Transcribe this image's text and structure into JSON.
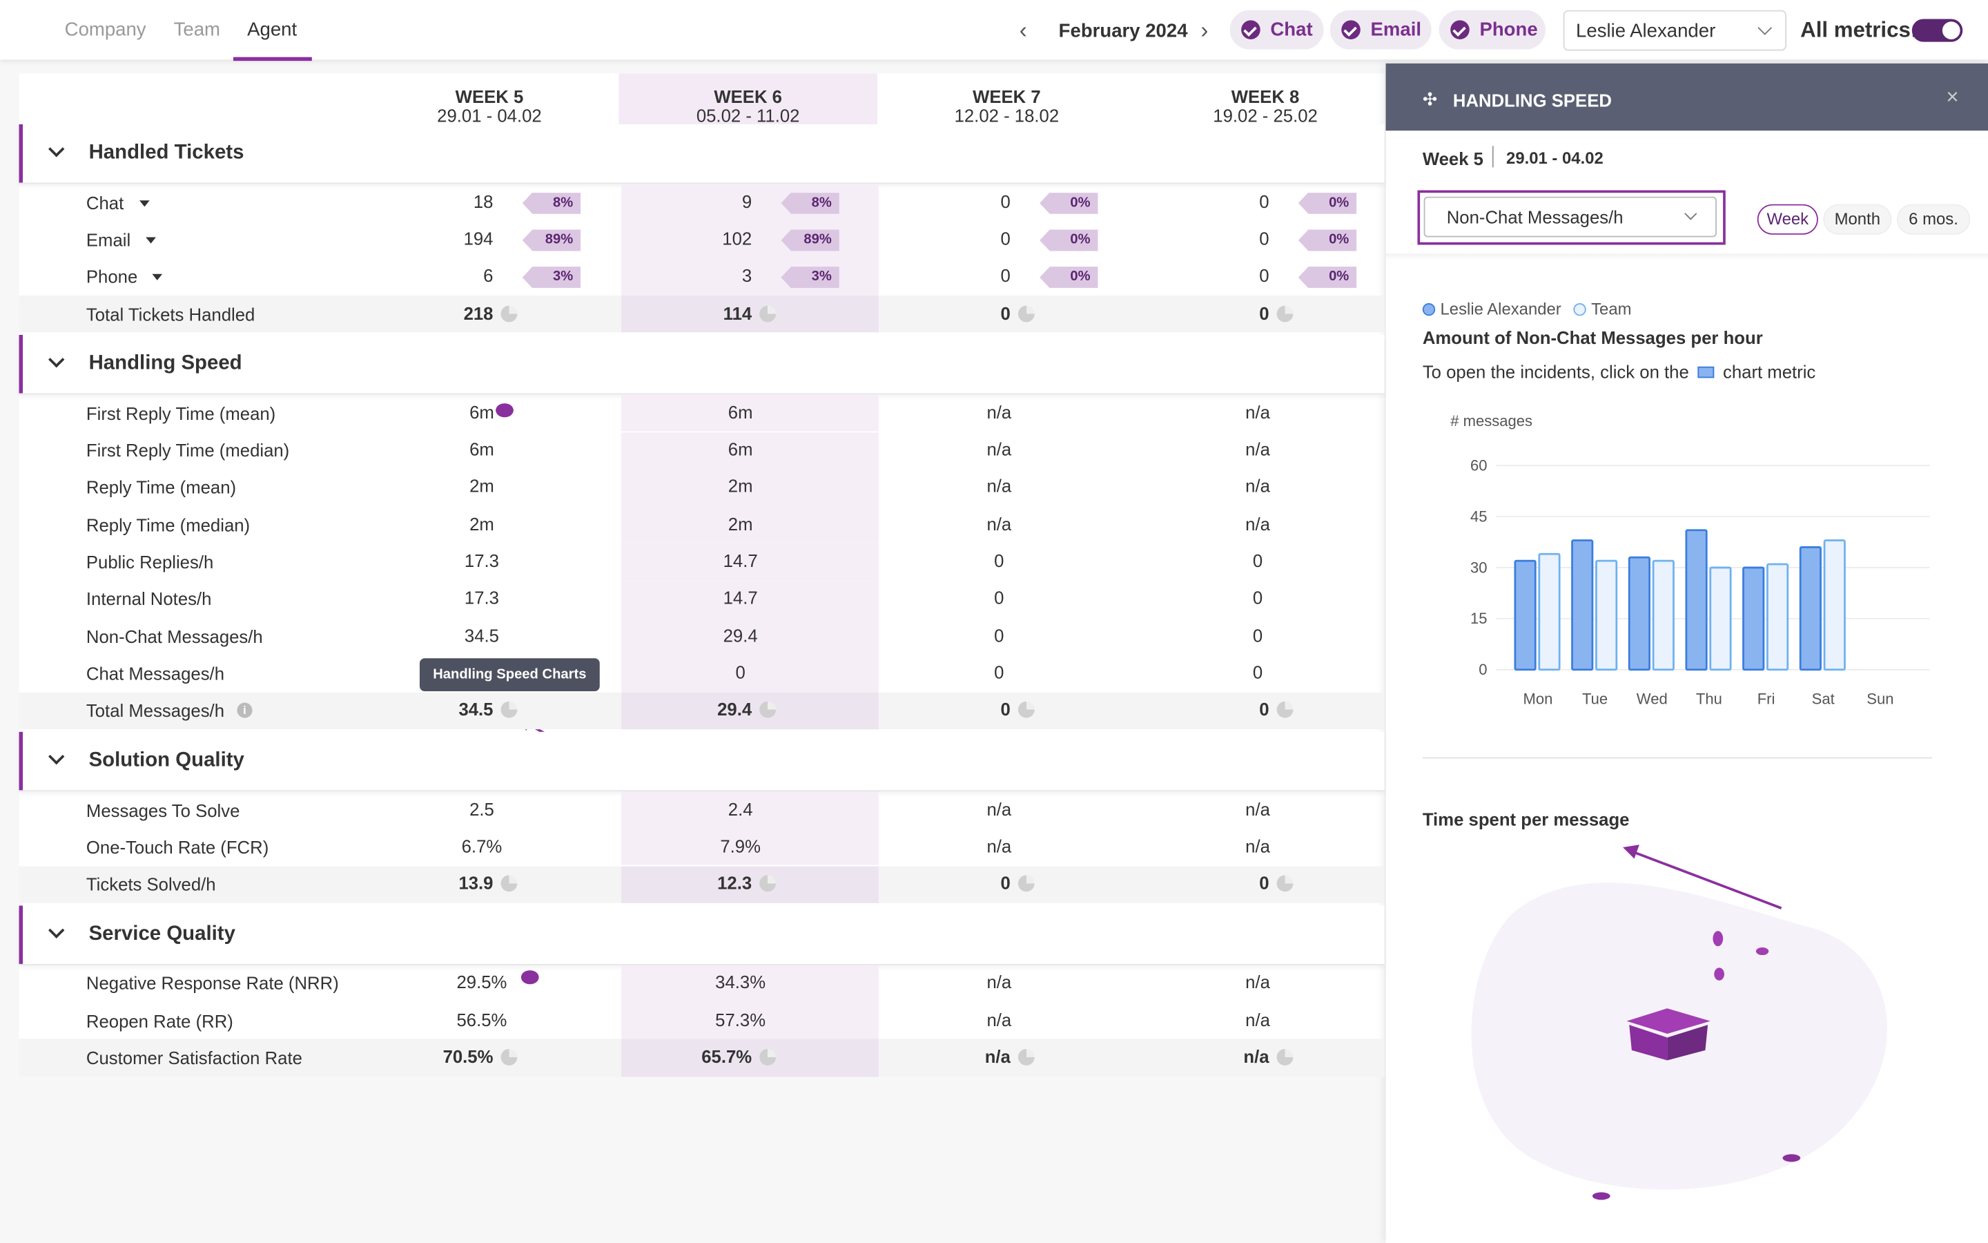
{
  "nav": {
    "tabs": [
      "Company",
      "Team",
      "Agent"
    ],
    "active_tab": "Agent",
    "month": "February 2024",
    "channels": [
      "Chat",
      "Email",
      "Phone"
    ],
    "agent": "Leslie Alexander",
    "all_metrics": "All metrics:"
  },
  "table": {
    "weeks": [
      {
        "name": "WEEK 5",
        "range": "29.01 - 04.02"
      },
      {
        "name": "WEEK 6",
        "range": "05.02 - 11.02"
      },
      {
        "name": "WEEK 7",
        "range": "12.02 - 18.02"
      },
      {
        "name": "WEEK 8",
        "range": "19.02 - 25.02"
      }
    ],
    "sections": [
      {
        "title": "Handled Tickets",
        "rows": [
          {
            "label": "Chat",
            "kind": "share",
            "dropdown": true,
            "cells": [
              "18",
              "9",
              "0",
              "0"
            ],
            "shares": [
              "8%",
              "8%",
              "0%",
              "0%"
            ]
          },
          {
            "label": "Email",
            "kind": "share",
            "dropdown": true,
            "cells": [
              "194",
              "102",
              "0",
              "0"
            ],
            "shares": [
              "89%",
              "89%",
              "0%",
              "0%"
            ]
          },
          {
            "label": "Phone",
            "kind": "share",
            "dropdown": true,
            "cells": [
              "6",
              "3",
              "0",
              "0"
            ],
            "shares": [
              "3%",
              "3%",
              "0%",
              "0%"
            ]
          },
          {
            "label": "Total Tickets Handled",
            "kind": "total",
            "cells": [
              "218",
              "114",
              "0",
              "0"
            ]
          }
        ]
      },
      {
        "title": "Handling Speed",
        "rows": [
          {
            "label": "First Reply Time (mean)",
            "kind": "plain",
            "cells": [
              "6m",
              "6m",
              "n/a",
              "n/a"
            ]
          },
          {
            "label": "First Reply Time (median)",
            "kind": "plain",
            "cells": [
              "6m",
              "6m",
              "n/a",
              "n/a"
            ]
          },
          {
            "label": "Reply Time (mean)",
            "kind": "plain",
            "cells": [
              "2m",
              "2m",
              "n/a",
              "n/a"
            ]
          },
          {
            "label": "Reply Time (median)",
            "kind": "plain",
            "cells": [
              "2m",
              "2m",
              "n/a",
              "n/a"
            ]
          },
          {
            "label": "Public Replies/h",
            "kind": "plain",
            "cells": [
              "17.3",
              "14.7",
              "0",
              "0"
            ]
          },
          {
            "label": "Internal Notes/h",
            "kind": "plain",
            "cells": [
              "17.3",
              "14.7",
              "0",
              "0"
            ]
          },
          {
            "label": "Non-Chat Messages/h",
            "kind": "plain",
            "cells": [
              "34.5",
              "29.4",
              "0",
              "0"
            ]
          },
          {
            "label": "Chat Messages/h",
            "kind": "plain",
            "cells": [
              "",
              "0",
              "0",
              "0"
            ]
          },
          {
            "label": "Total Messages/h",
            "kind": "total",
            "info": true,
            "cells": [
              "34.5",
              "29.4",
              "0",
              "0"
            ]
          }
        ]
      },
      {
        "title": "Solution Quality",
        "rows": [
          {
            "label": "Messages To Solve",
            "kind": "plain",
            "cells": [
              "2.5",
              "2.4",
              "n/a",
              "n/a"
            ]
          },
          {
            "label": "One-Touch Rate (FCR)",
            "kind": "plain",
            "cells": [
              "6.7%",
              "7.9%",
              "n/a",
              "n/a"
            ]
          },
          {
            "label": "Tickets Solved/h",
            "kind": "total",
            "cells": [
              "13.9",
              "12.3",
              "0",
              "0"
            ]
          }
        ]
      },
      {
        "title": "Service Quality",
        "rows": [
          {
            "label": "Negative Response Rate (NRR)",
            "kind": "plain",
            "cells": [
              "29.5%",
              "34.3%",
              "n/a",
              "n/a"
            ]
          },
          {
            "label": "Reopen Rate (RR)",
            "kind": "plain",
            "cells": [
              "56.5%",
              "57.3%",
              "n/a",
              "n/a"
            ]
          },
          {
            "label": "Customer Satisfaction Rate",
            "kind": "total",
            "cells": [
              "70.5%",
              "65.7%",
              "n/a",
              "n/a"
            ]
          }
        ]
      }
    ],
    "tooltip": "Handling Speed Charts"
  },
  "panel": {
    "title": "HANDLING SPEED",
    "week": "Week 5",
    "range": "29.01 - 04.02",
    "metric": "Non-Chat Messages/h",
    "periods": [
      "Week",
      "Month",
      "6 mos."
    ],
    "active_period": "Week",
    "hint_before": "To open the incidents, click on the",
    "hint_after": "chart metric",
    "second_title": "Time spent per message"
  },
  "chart_data": {
    "type": "bar",
    "title": "Amount of Non-Chat Messages per hour",
    "y_label": "# messages",
    "categories": [
      "Mon",
      "Tue",
      "Wed",
      "Thu",
      "Fri",
      "Sat",
      "Sun"
    ],
    "series": [
      {
        "name": "Leslie Alexander",
        "color": "#8ab4f0",
        "values": [
          32,
          38,
          33,
          41,
          30,
          36,
          null
        ]
      },
      {
        "name": "Team",
        "color": "#e9f2fd",
        "values": [
          34,
          32,
          32,
          30,
          31,
          38,
          null
        ]
      }
    ],
    "ylim": [
      0,
      60
    ],
    "yticks": [
      0,
      15,
      30,
      45,
      60
    ],
    "grid": true
  }
}
